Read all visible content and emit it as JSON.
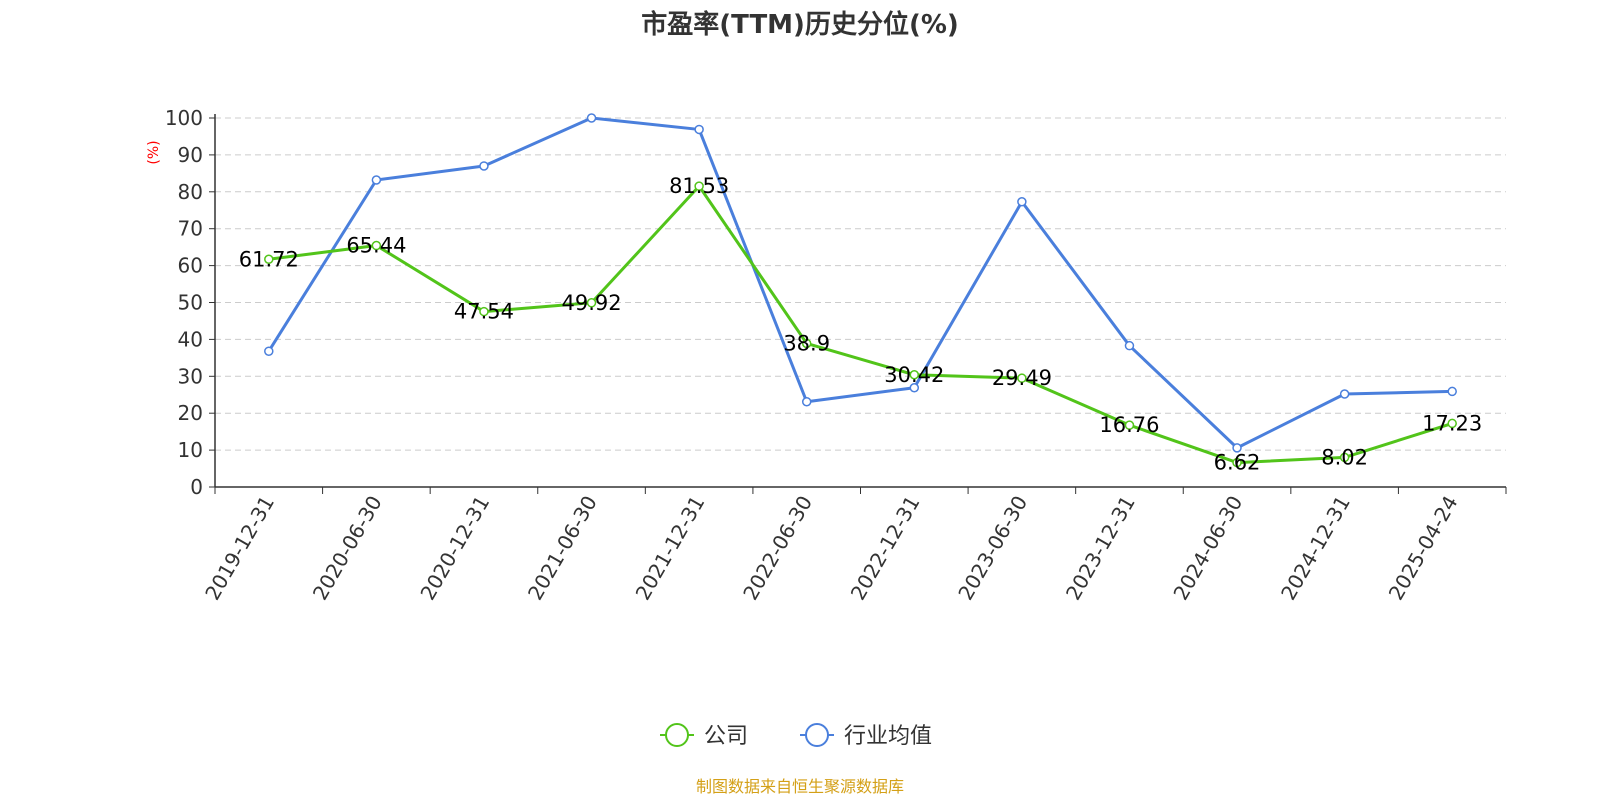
{
  "chart_data": {
    "type": "line",
    "title": "市盈率(TTM)历史分位(%)",
    "ylabel": "(%)",
    "ylim": [
      0,
      100
    ],
    "yticks": [
      0,
      10,
      20,
      30,
      40,
      50,
      60,
      70,
      80,
      90,
      100
    ],
    "grid": true,
    "legend_position": "bottom-center",
    "categories": [
      "2019-12-31",
      "2020-06-30",
      "2020-12-31",
      "2021-06-30",
      "2021-12-31",
      "2022-06-30",
      "2022-12-31",
      "2023-06-30",
      "2023-12-31",
      "2024-06-30",
      "2024-12-31",
      "2025-04-24"
    ],
    "series": [
      {
        "name": "公司",
        "color": "#52c41a",
        "values": [
          61.72,
          65.44,
          47.54,
          49.92,
          81.53,
          38.9,
          30.42,
          29.49,
          16.76,
          6.62,
          8.02,
          17.23
        ],
        "labels": [
          "61.72",
          "65.44",
          "47.54",
          "49.92",
          "81.53",
          "38.9",
          "30.42",
          "29.49",
          "16.76",
          "6.62",
          "8.02",
          "17.23"
        ]
      },
      {
        "name": "行业均值",
        "color": "#4a7fdc",
        "values": [
          36.8,
          83.2,
          87.0,
          100.0,
          96.9,
          23.1,
          26.9,
          77.3,
          38.3,
          10.6,
          25.2,
          25.9
        ]
      }
    ],
    "source_text": "制图数据来自恒生聚源数据库",
    "label_color": "#ff0000",
    "source_color": "#d4a017"
  }
}
